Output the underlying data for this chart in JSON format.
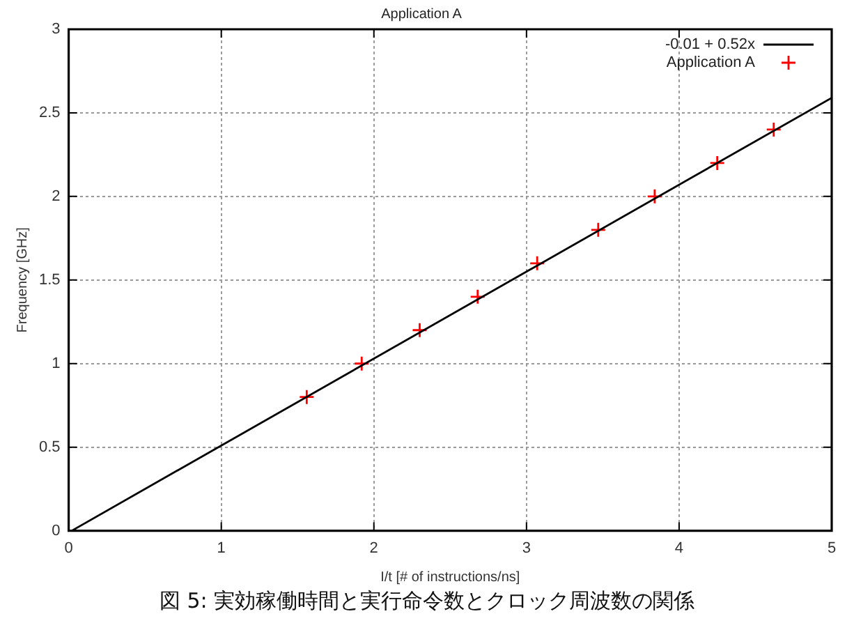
{
  "chart_data": {
    "type": "scatter",
    "title": "Application A",
    "xlabel": "I/t [# of instructions/ns]",
    "ylabel": "Frequency [GHz]",
    "series": [
      {
        "name": "-0.01 + 0.52x",
        "type": "line",
        "color": "#000000",
        "marker": "none",
        "x": [
          0.02,
          5
        ],
        "values": [
          0,
          2.59
        ]
      },
      {
        "name": "Application A",
        "type": "scatter",
        "color": "#ff0000",
        "x": [
          1.56,
          1.92,
          2.3,
          2.68,
          3.07,
          3.47,
          3.84,
          4.25,
          4.62
        ],
        "values": [
          0.8,
          1.0,
          1.2,
          1.4,
          1.6,
          1.8,
          2.0,
          2.2,
          2.4
        ]
      }
    ],
    "marker": "cross",
    "xlim": [
      0,
      5
    ],
    "ylim": [
      0,
      3
    ],
    "xticks": [
      0,
      1,
      2,
      3,
      4,
      5
    ],
    "yticks": [
      0,
      0.5,
      1,
      1.5,
      2,
      2.5,
      3
    ],
    "grid": true,
    "legend": "top right",
    "annotations": [
      "図 5: 実効稼働時間と実行命令数とクロック周波数の関係"
    ]
  }
}
